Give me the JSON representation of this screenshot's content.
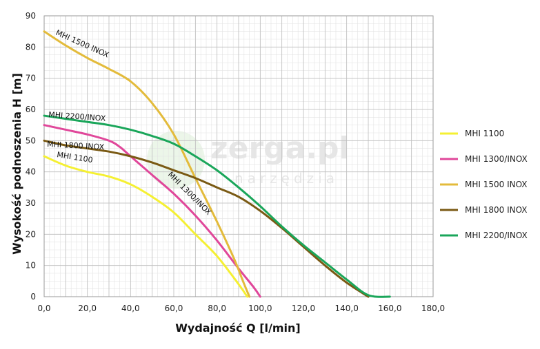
{
  "chart_data": {
    "type": "line",
    "title": "",
    "xlabel": "Wydajność Q [l/min]",
    "ylabel": "Wysokość podnoszenia H [m]",
    "xlim": [
      0,
      180
    ],
    "ylim": [
      0,
      90
    ],
    "x_ticks": [
      "0,0",
      "20,0",
      "40,0",
      "60,0",
      "80,0",
      "100,0",
      "120,0",
      "140,0",
      "160,0",
      "180,0"
    ],
    "y_ticks": [
      "0",
      "10",
      "20",
      "30",
      "40",
      "50",
      "60",
      "70",
      "80",
      "90"
    ],
    "grid": true,
    "legend_position": "right",
    "series": [
      {
        "name": "MHI 1100",
        "color": "#f5f032",
        "curve_label": "MHI 1100",
        "points": [
          [
            0,
            45
          ],
          [
            10,
            42
          ],
          [
            20,
            40
          ],
          [
            30,
            38.5
          ],
          [
            40,
            36
          ],
          [
            50,
            32
          ],
          [
            60,
            27
          ],
          [
            70,
            20
          ],
          [
            80,
            13
          ],
          [
            90,
            4
          ],
          [
            94,
            0
          ]
        ]
      },
      {
        "name": "MHI 1300/INOX",
        "color": "#e0479a",
        "curve_label": "MHI 1300/INOX",
        "points": [
          [
            0,
            55
          ],
          [
            10,
            53.5
          ],
          [
            20,
            52
          ],
          [
            30,
            50
          ],
          [
            35,
            48
          ],
          [
            40,
            45
          ],
          [
            50,
            39
          ],
          [
            60,
            33
          ],
          [
            70,
            26
          ],
          [
            80,
            18
          ],
          [
            90,
            9
          ],
          [
            97,
            3
          ],
          [
            100,
            0
          ]
        ]
      },
      {
        "name": "MHI 1500 INOX",
        "color": "#e3bb3b",
        "curve_label": "MHI 1500 INOX",
        "points": [
          [
            0,
            85
          ],
          [
            10,
            80.5
          ],
          [
            20,
            76.5
          ],
          [
            30,
            73
          ],
          [
            40,
            69
          ],
          [
            50,
            62
          ],
          [
            60,
            52
          ],
          [
            70,
            38
          ],
          [
            80,
            24
          ],
          [
            88,
            12
          ],
          [
            92,
            5
          ],
          [
            95,
            0
          ]
        ]
      },
      {
        "name": "MHI 1800 INOX",
        "color": "#7a5a14",
        "curve_label": "MHI 1800 INOX",
        "points": [
          [
            0,
            50
          ],
          [
            10,
            48.5
          ],
          [
            20,
            47.5
          ],
          [
            30,
            46.5
          ],
          [
            40,
            45
          ],
          [
            50,
            43
          ],
          [
            60,
            40.5
          ],
          [
            70,
            38
          ],
          [
            80,
            35
          ],
          [
            90,
            32
          ],
          [
            100,
            27.5
          ],
          [
            110,
            22
          ],
          [
            120,
            16
          ],
          [
            130,
            10
          ],
          [
            140,
            4.5
          ],
          [
            150,
            0
          ]
        ]
      },
      {
        "name": "MHI 2200/INOX",
        "color": "#1aa65a",
        "curve_label": "MHI 2200/INOX",
        "points": [
          [
            0,
            58
          ],
          [
            10,
            57
          ],
          [
            20,
            56
          ],
          [
            30,
            55
          ],
          [
            40,
            53.5
          ],
          [
            50,
            51.5
          ],
          [
            60,
            49
          ],
          [
            70,
            45
          ],
          [
            80,
            40.5
          ],
          [
            90,
            35
          ],
          [
            100,
            29
          ],
          [
            110,
            22.5
          ],
          [
            120,
            16.5
          ],
          [
            130,
            11
          ],
          [
            140,
            5.5
          ],
          [
            150,
            0.5
          ],
          [
            160,
            0
          ]
        ]
      }
    ],
    "watermark": "zerga.pl",
    "watermark_sub": "narzędzia"
  }
}
